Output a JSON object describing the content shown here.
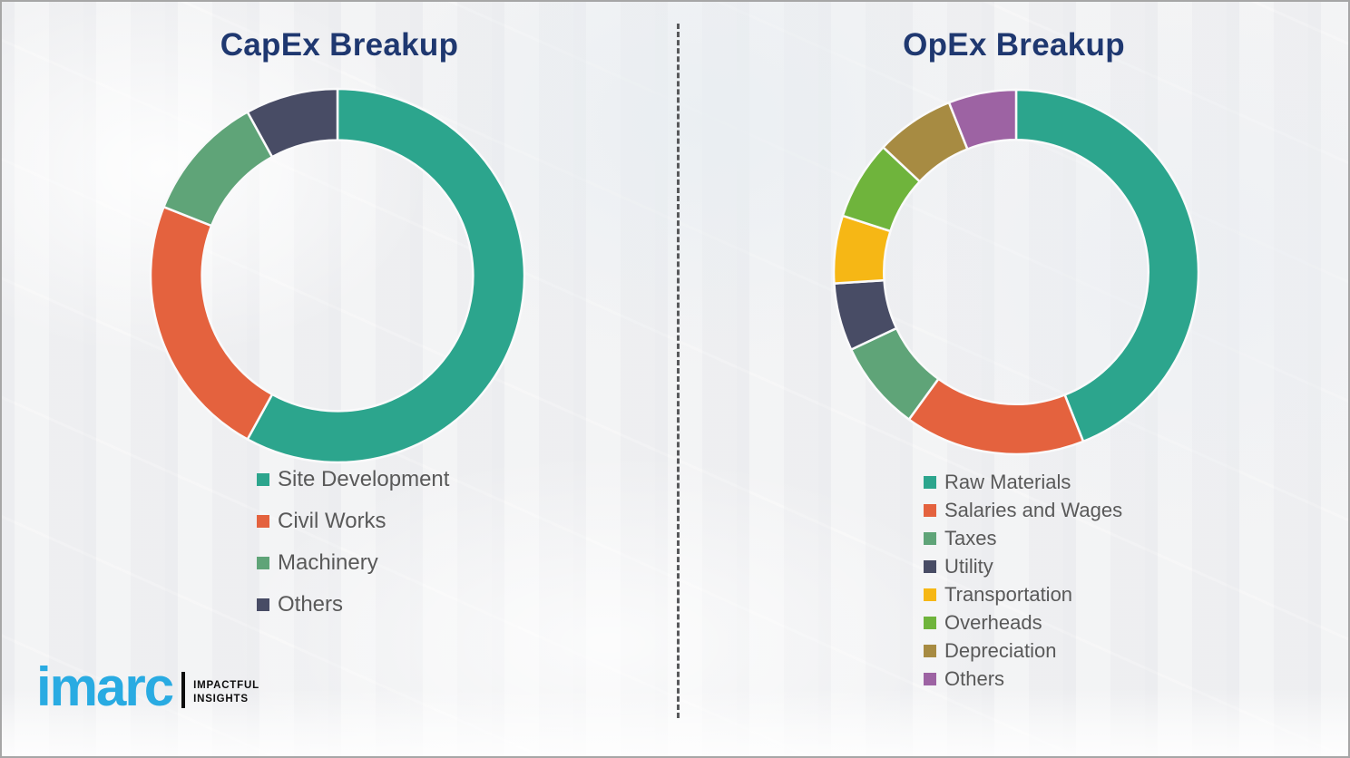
{
  "chart_data": [
    {
      "type": "pie",
      "variant": "donut",
      "title": "CapEx Breakup",
      "labels": [
        "Site Development",
        "Civil Works",
        "Machinery",
        "Others"
      ],
      "values": [
        58,
        23,
        11,
        8
      ],
      "colors": [
        "#2CA58D",
        "#E4623E",
        "#5FA478",
        "#484C65"
      ],
      "start_angle_deg": 0,
      "direction": "clockwise",
      "legend_position": "below-chart"
    },
    {
      "type": "pie",
      "variant": "donut",
      "title": "OpEx Breakup",
      "labels": [
        "Raw Materials",
        "Salaries and Wages",
        "Taxes",
        "Utility",
        "Transportation",
        "Overheads",
        "Depreciation",
        "Others"
      ],
      "values": [
        44,
        16,
        8,
        6,
        6,
        7,
        7,
        6
      ],
      "colors": [
        "#2CA58D",
        "#E4623E",
        "#5FA478",
        "#484C65",
        "#F6B715",
        "#6FB43C",
        "#A78B42",
        "#9D63A3"
      ],
      "start_angle_deg": 0,
      "direction": "clockwise",
      "legend_position": "below-chart"
    }
  ],
  "style": {
    "title_color": "#1F3870",
    "legend_text_color": "#595959",
    "background_color": "#F3F3F4",
    "segment_gap_color": "#FAFAFB"
  },
  "logo": {
    "brand": "imarc",
    "tagline": [
      "IMPACTFUL",
      "INSIGHTS"
    ],
    "brand_color": "#29ABE2"
  }
}
